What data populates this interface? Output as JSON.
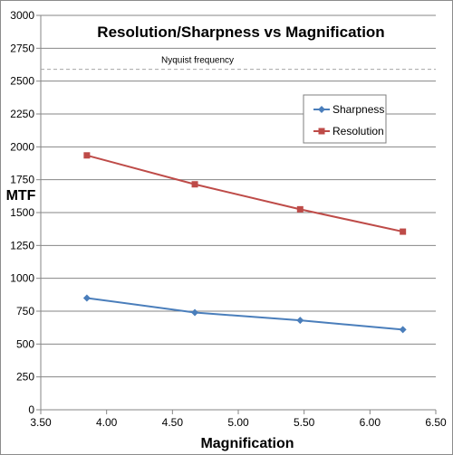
{
  "chart_data": {
    "type": "line",
    "title": "Resolution/Sharpness vs Magnification",
    "xlabel": "Magnification",
    "ylabel": "MTF",
    "xlim": [
      3.5,
      6.5
    ],
    "ylim": [
      0,
      3000
    ],
    "x_ticks": [
      "3.50",
      "4.00",
      "4.50",
      "5.00",
      "5.50",
      "6.00",
      "6.50"
    ],
    "y_ticks": [
      "0",
      "250",
      "500",
      "750",
      "1000",
      "1250",
      "1500",
      "1750",
      "2000",
      "2250",
      "2500",
      "2750",
      "3000"
    ],
    "grid": "horizontal",
    "legend_position": "right",
    "series": [
      {
        "name": "Sharpness",
        "color": "#4a7ebb",
        "marker": "diamond",
        "x": [
          3.85,
          4.67,
          5.47,
          6.25
        ],
        "y": [
          850,
          740,
          680,
          610
        ]
      },
      {
        "name": "Resolution",
        "color": "#be4b48",
        "marker": "square",
        "x": [
          3.85,
          4.67,
          5.47,
          6.25
        ],
        "y": [
          1935,
          1715,
          1525,
          1355
        ]
      }
    ],
    "reference_line": {
      "label": "Nyquist frequency",
      "y": 2590,
      "color": "#a6a6a6",
      "style": "dashed"
    }
  }
}
